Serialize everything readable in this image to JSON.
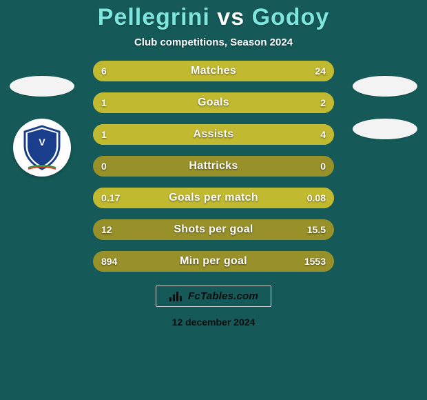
{
  "background_color": "#155a58",
  "title": {
    "left": "Pellegrini",
    "vs": "vs",
    "right": "Godoy",
    "left_color": "#7fe6df",
    "vs_color": "#ffffff",
    "right_color": "#7fe6df"
  },
  "subtitle": "Club competitions, Season 2024",
  "badge_left": {
    "show_crest": true
  },
  "badge_right": {
    "show_crest": false
  },
  "bars": {
    "track_color": "#989029",
    "fill_color": "#c1b930",
    "items": [
      {
        "label": "Matches",
        "left": "6",
        "right": "24",
        "left_pct": 20,
        "right_pct": 80
      },
      {
        "label": "Goals",
        "left": "1",
        "right": "2",
        "left_pct": 33,
        "right_pct": 67
      },
      {
        "label": "Assists",
        "left": "1",
        "right": "4",
        "left_pct": 20,
        "right_pct": 80
      },
      {
        "label": "Hattricks",
        "left": "0",
        "right": "0",
        "left_pct": 0,
        "right_pct": 0
      },
      {
        "label": "Goals per match",
        "left": "0.17",
        "right": "0.08",
        "left_pct": 68,
        "right_pct": 32
      },
      {
        "label": "Shots per goal",
        "left": "12",
        "right": "15.5",
        "left_pct": 0,
        "right_pct": 0
      },
      {
        "label": "Min per goal",
        "left": "894",
        "right": "1553",
        "left_pct": 0,
        "right_pct": 0
      }
    ]
  },
  "attribution": {
    "text": "FcTables.com",
    "text_color": "#0c0c0c",
    "icon_color": "#0c0c0c",
    "border_color": "#cfcfcf",
    "bg_color": "transparent"
  },
  "date": {
    "text": "12 december 2024",
    "color": "#0c0c0c"
  }
}
